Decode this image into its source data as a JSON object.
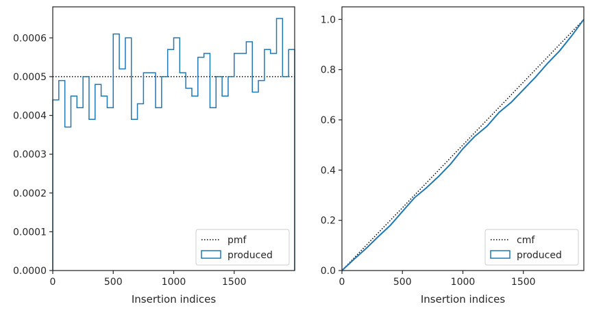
{
  "chart_data": [
    {
      "type": "histogram-step",
      "xlabel": "Insertion indices",
      "ylabel": "",
      "xlim": [
        0,
        2000
      ],
      "ylim": [
        0,
        0.00068
      ],
      "xticks": [
        0,
        500,
        1000,
        1500
      ],
      "xtick_labels": [
        "0",
        "500",
        "1000",
        "1500"
      ],
      "yticks": [
        0,
        0.0001,
        0.0002,
        0.0003,
        0.0004,
        0.0005,
        0.0006
      ],
      "ytick_labels": [
        "0.0000",
        "0.0001",
        "0.0002",
        "0.0003",
        "0.0004",
        "0.0005",
        "0.0006"
      ],
      "legend": {
        "placement": "lower-right",
        "entries": [
          "pmf",
          "produced"
        ]
      },
      "series": [
        {
          "name": "pmf",
          "style": "dotted",
          "color": "#000000",
          "y": 0.0005
        },
        {
          "name": "produced",
          "style": "step",
          "color": "#1f77b4",
          "bin_edges": [
            0,
            50,
            100,
            150,
            200,
            250,
            300,
            350,
            400,
            450,
            500,
            550,
            600,
            650,
            700,
            750,
            800,
            850,
            900,
            950,
            1000,
            1050,
            1100,
            1150,
            1200,
            1250,
            1300,
            1350,
            1400,
            1450,
            1500,
            1550,
            1600,
            1650,
            1700,
            1750,
            1800,
            1850,
            1900,
            1950,
            2000
          ],
          "values": [
            0.00044,
            0.00049,
            0.00037,
            0.00045,
            0.00042,
            0.0005,
            0.00039,
            0.00048,
            0.00045,
            0.00042,
            0.00061,
            0.00052,
            0.0006,
            0.00039,
            0.00043,
            0.00051,
            0.00051,
            0.00042,
            0.0005,
            0.00057,
            0.0006,
            0.00051,
            0.00047,
            0.00045,
            0.00055,
            0.00056,
            0.00042,
            0.0005,
            0.00045,
            0.0005,
            0.00056,
            0.00056,
            0.00059,
            0.00046,
            0.00049,
            0.00057,
            0.00056,
            0.00065,
            0.0005,
            0.00057
          ]
        }
      ]
    },
    {
      "type": "line",
      "xlabel": "Insertion indices",
      "ylabel": "",
      "xlim": [
        0,
        2000
      ],
      "ylim": [
        0,
        1.05
      ],
      "xticks": [
        0,
        500,
        1000,
        1500
      ],
      "xtick_labels": [
        "0",
        "500",
        "1000",
        "1500"
      ],
      "yticks": [
        0,
        0.2,
        0.4,
        0.6,
        0.8,
        1.0
      ],
      "ytick_labels": [
        "0.0",
        "0.2",
        "0.4",
        "0.6",
        "0.8",
        "1.0"
      ],
      "legend": {
        "placement": "lower-right",
        "entries": [
          "cmf",
          "produced"
        ]
      },
      "series": [
        {
          "name": "cmf",
          "style": "dotted",
          "color": "#000000",
          "x": [
            0,
            2000
          ],
          "y": [
            0,
            1.0
          ]
        },
        {
          "name": "produced",
          "style": "line",
          "color": "#1f77b4",
          "x": [
            0,
            100,
            200,
            300,
            400,
            500,
            600,
            700,
            800,
            900,
            1000,
            1100,
            1200,
            1300,
            1400,
            1500,
            1600,
            1700,
            1800,
            1900,
            2000
          ],
          "y": [
            0,
            0.045,
            0.088,
            0.135,
            0.18,
            0.235,
            0.29,
            0.33,
            0.375,
            0.425,
            0.485,
            0.535,
            0.575,
            0.63,
            0.67,
            0.72,
            0.77,
            0.825,
            0.875,
            0.935,
            1.0
          ]
        }
      ]
    }
  ]
}
